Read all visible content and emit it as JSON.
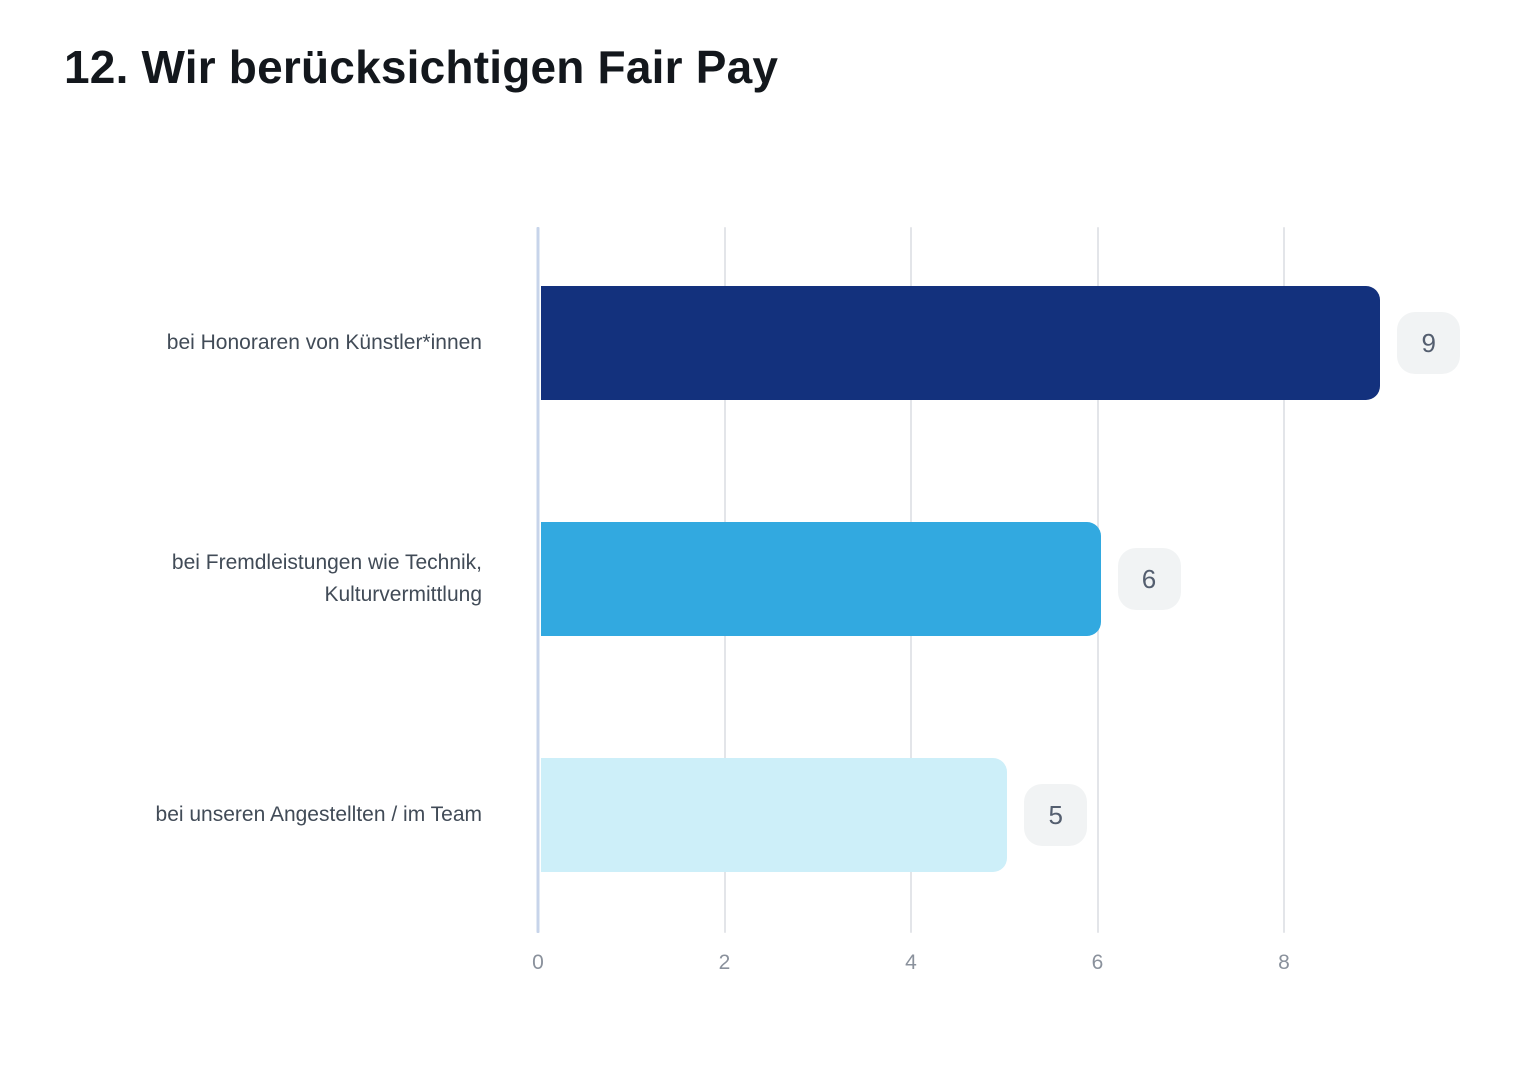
{
  "page": {
    "title": "12. Wir berücksichtigen Fair Pay"
  },
  "chart_data": {
    "type": "bar",
    "orientation": "horizontal",
    "title": "12. Wir berücksichtigen Fair Pay",
    "categories": [
      "bei Honoraren von Künstler*innen",
      "bei Fremdleistungen wie Technik, Kulturvermittlung",
      "bei unseren Angestellten / im Team"
    ],
    "values": [
      9,
      6,
      5
    ],
    "value_labels": [
      "9",
      "6",
      "5"
    ],
    "bar_colors": [
      "#13317D",
      "#32A9E0",
      "#CDEFF9"
    ],
    "x_ticks": [
      0,
      2,
      4,
      6,
      8
    ],
    "xlim": [
      0,
      9.67
    ],
    "xlabel": "",
    "ylabel": "",
    "grid": true,
    "legend": false,
    "colors": {
      "background": "#FFFFFF",
      "title_text": "#13171C",
      "category_label_text": "#414B57",
      "tick_label_text": "#8A919C",
      "gridline": "#E3E5E9",
      "zero_axis_line": "#C7D4EA",
      "badge_background": "#F1F3F4",
      "badge_text": "#545E6F"
    }
  }
}
